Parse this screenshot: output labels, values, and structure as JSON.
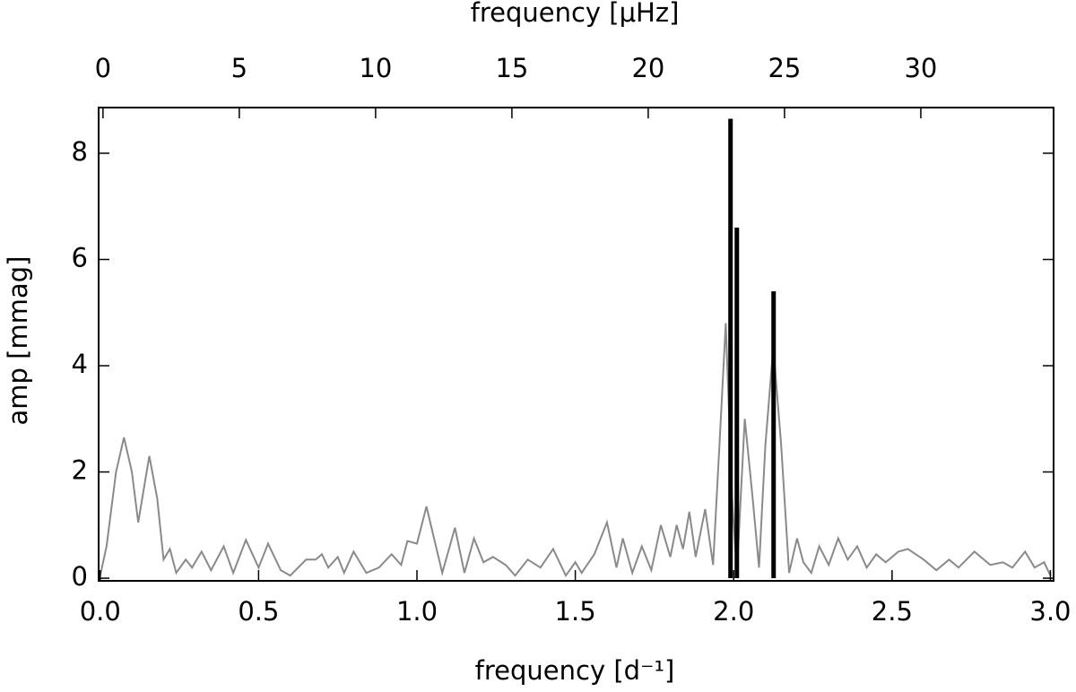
{
  "chart_data": {
    "type": "line",
    "xlabel": "frequency [d⁻¹]",
    "x2label": "frequency [μHz]",
    "ylabel": "amp [mmag]",
    "xlim": [
      -0.005,
      3.01
    ],
    "xticks": [
      {
        "value": 0,
        "label": "0.0"
      },
      0.5,
      {
        "value": 1,
        "label": "1.0"
      },
      1.5,
      {
        "value": 2,
        "label": "2.0"
      },
      2.5,
      {
        "value": 3,
        "label": "3.0"
      }
    ],
    "x2lim": [
      -0.16,
      34.87
    ],
    "x2ticks": [
      0,
      5,
      10,
      15,
      20,
      25,
      30
    ],
    "ylim": [
      -0.05,
      8.86
    ],
    "yticks": [
      0,
      2,
      4,
      6,
      8
    ],
    "series": [
      {
        "type": "line",
        "color": "#8a8a8a",
        "x": [
          0.0,
          0.02,
          0.05,
          0.075,
          0.1,
          0.12,
          0.155,
          0.18,
          0.2,
          0.22,
          0.24,
          0.27,
          0.29,
          0.32,
          0.35,
          0.39,
          0.42,
          0.46,
          0.5,
          0.53,
          0.57,
          0.6,
          0.65,
          0.68,
          0.7,
          0.72,
          0.75,
          0.77,
          0.8,
          0.84,
          0.88,
          0.92,
          0.95,
          0.97,
          1.0,
          1.03,
          1.06,
          1.08,
          1.12,
          1.15,
          1.18,
          1.21,
          1.24,
          1.28,
          1.31,
          1.35,
          1.39,
          1.43,
          1.47,
          1.5,
          1.52,
          1.56,
          1.6,
          1.63,
          1.65,
          1.68,
          1.71,
          1.74,
          1.77,
          1.8,
          1.82,
          1.84,
          1.86,
          1.88,
          1.91,
          1.935,
          1.955,
          1.975,
          1.995,
          2.01,
          2.035,
          2.06,
          2.08,
          2.1,
          2.125,
          2.15,
          2.175,
          2.2,
          2.22,
          2.245,
          2.27,
          2.3,
          2.33,
          2.36,
          2.39,
          2.42,
          2.45,
          2.48,
          2.52,
          2.55,
          2.6,
          2.64,
          2.68,
          2.71,
          2.76,
          2.81,
          2.85,
          2.88,
          2.92,
          2.95,
          2.98,
          3.0
        ],
        "values": [
          0.05,
          0.6,
          2.0,
          2.65,
          2.0,
          1.05,
          2.3,
          1.5,
          0.35,
          0.55,
          0.1,
          0.35,
          0.2,
          0.5,
          0.15,
          0.6,
          0.1,
          0.72,
          0.2,
          0.65,
          0.15,
          0.05,
          0.35,
          0.35,
          0.45,
          0.2,
          0.4,
          0.1,
          0.5,
          0.1,
          0.2,
          0.45,
          0.25,
          0.7,
          0.65,
          1.35,
          0.6,
          0.1,
          0.95,
          0.1,
          0.75,
          0.3,
          0.4,
          0.25,
          0.05,
          0.35,
          0.2,
          0.55,
          0.05,
          0.3,
          0.1,
          0.45,
          1.05,
          0.2,
          0.75,
          0.1,
          0.6,
          0.15,
          1.0,
          0.4,
          1.0,
          0.55,
          1.25,
          0.4,
          1.3,
          0.25,
          2.5,
          4.8,
          1.5,
          0.1,
          3.0,
          1.5,
          0.2,
          2.5,
          4.35,
          2.5,
          0.1,
          0.75,
          0.3,
          0.1,
          0.6,
          0.25,
          0.75,
          0.35,
          0.6,
          0.2,
          0.45,
          0.3,
          0.5,
          0.55,
          0.35,
          0.15,
          0.35,
          0.2,
          0.5,
          0.25,
          0.3,
          0.2,
          0.5,
          0.2,
          0.3,
          0.05
        ]
      },
      {
        "type": "stem",
        "color": "#000000",
        "x": [
          1.99,
          2.01,
          2.126
        ],
        "values": [
          8.65,
          6.6,
          5.4
        ]
      }
    ]
  }
}
